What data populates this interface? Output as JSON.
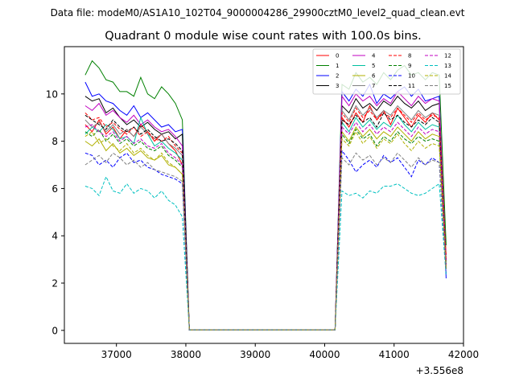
{
  "chart_data": {
    "type": "line",
    "suptitle": "Data file: modeM0/AS1A10_102T04_9000004286_29900cztM0_level2_quad_clean.evt",
    "title": "Quadrant 0 module wise count rates with 100.0s bins.",
    "xlabel": "",
    "ylabel": "",
    "offset_label": "+3.556e8",
    "xlim": [
      36250,
      42000
    ],
    "ylim": [
      -0.55,
      12.0
    ],
    "xticks": [
      37000,
      38000,
      39000,
      40000,
      41000,
      42000
    ],
    "yticks": [
      0,
      2,
      4,
      6,
      8,
      10
    ],
    "legend_position": "upper right",
    "x": [
      36550,
      36650,
      36750,
      36850,
      36950,
      37050,
      37150,
      37250,
      37350,
      37450,
      37550,
      37650,
      37750,
      37850,
      37950,
      38050,
      38150,
      38250,
      38350,
      38450,
      38550,
      38650,
      38750,
      38850,
      38950,
      39050,
      39150,
      39250,
      39350,
      39450,
      39550,
      39650,
      39750,
      39850,
      39950,
      40050,
      40150,
      40250,
      40350,
      40450,
      40550,
      40650,
      40750,
      40850,
      40950,
      41050,
      41150,
      41250,
      41350,
      41450,
      41550,
      41650,
      41750
    ],
    "series": [
      {
        "name": "0",
        "color": "#ff0000",
        "dash": "solid",
        "values": [
          8.7,
          8.4,
          8.9,
          8.3,
          8.6,
          8.1,
          8.5,
          8.2,
          8.7,
          8.4,
          8.0,
          8.3,
          7.9,
          7.6,
          7.0,
          0.02,
          0.02,
          0.02,
          0.02,
          0.02,
          0.02,
          0.02,
          0.02,
          0.02,
          0.02,
          0.02,
          0.02,
          0.02,
          0.02,
          0.02,
          0.02,
          0.02,
          0.02,
          0.02,
          0.02,
          0.02,
          0.02,
          9.0,
          8.6,
          9.2,
          8.8,
          9.5,
          8.9,
          9.3,
          8.7,
          9.4,
          9.0,
          8.6,
          9.1,
          8.8,
          9.2,
          8.9,
          3.2
        ]
      },
      {
        "name": "1",
        "color": "#008000",
        "dash": "solid",
        "values": [
          10.8,
          11.4,
          11.1,
          10.6,
          10.5,
          10.1,
          10.1,
          9.9,
          10.7,
          10.0,
          9.8,
          10.3,
          10.0,
          9.6,
          8.9,
          0.02,
          0.02,
          0.02,
          0.02,
          0.02,
          0.02,
          0.02,
          0.02,
          0.02,
          0.02,
          0.02,
          0.02,
          0.02,
          0.02,
          0.02,
          0.02,
          0.02,
          0.02,
          0.02,
          0.02,
          0.02,
          0.02,
          10.4,
          10.2,
          10.9,
          10.5,
          10.7,
          10.4,
          10.9,
          10.6,
          11.0,
          11.2,
          10.8,
          10.9,
          10.6,
          10.9,
          10.8,
          3.6
        ]
      },
      {
        "name": "2",
        "color": "#0000ff",
        "dash": "solid",
        "values": [
          10.5,
          9.9,
          10.0,
          9.7,
          9.6,
          9.3,
          9.1,
          9.5,
          9.0,
          9.2,
          8.9,
          8.6,
          8.7,
          8.4,
          8.5,
          0.02,
          0.02,
          0.02,
          0.02,
          0.02,
          0.02,
          0.02,
          0.02,
          0.02,
          0.02,
          0.02,
          0.02,
          0.02,
          0.02,
          0.02,
          0.02,
          0.02,
          0.02,
          0.02,
          0.02,
          0.02,
          0.02,
          10.1,
          9.7,
          10.2,
          9.9,
          10.4,
          9.6,
          10.0,
          9.8,
          10.1,
          10.3,
          9.9,
          10.2,
          9.7,
          9.8,
          9.9,
          2.2
        ]
      },
      {
        "name": "3",
        "color": "#000000",
        "dash": "solid",
        "values": [
          9.9,
          9.7,
          9.8,
          9.2,
          9.4,
          9.0,
          8.7,
          8.9,
          8.6,
          8.8,
          8.5,
          8.3,
          8.4,
          8.1,
          8.3,
          0.02,
          0.02,
          0.02,
          0.02,
          0.02,
          0.02,
          0.02,
          0.02,
          0.02,
          0.02,
          0.02,
          0.02,
          0.02,
          0.02,
          0.02,
          0.02,
          0.02,
          0.02,
          0.02,
          0.02,
          0.02,
          0.02,
          9.5,
          9.2,
          9.8,
          9.4,
          9.6,
          9.3,
          9.7,
          9.5,
          9.9,
          9.6,
          9.4,
          9.7,
          9.3,
          9.5,
          9.6,
          2.6
        ]
      },
      {
        "name": "4",
        "color": "#c000c0",
        "dash": "solid",
        "values": [
          9.5,
          9.3,
          9.6,
          9.1,
          9.3,
          9.0,
          8.8,
          9.1,
          8.7,
          8.9,
          8.6,
          8.4,
          8.5,
          8.2,
          7.8,
          0.02,
          0.02,
          0.02,
          0.02,
          0.02,
          0.02,
          0.02,
          0.02,
          0.02,
          0.02,
          0.02,
          0.02,
          0.02,
          0.02,
          0.02,
          0.02,
          0.02,
          0.02,
          0.02,
          0.02,
          0.02,
          0.02,
          9.9,
          9.5,
          10.0,
          9.7,
          9.9,
          9.5,
          9.8,
          9.6,
          10.1,
          9.8,
          9.5,
          9.9,
          9.6,
          9.8,
          9.7,
          2.9
        ]
      },
      {
        "name": "5",
        "color": "#00c0a0",
        "dash": "solid",
        "values": [
          8.3,
          8.6,
          8.4,
          8.7,
          8.5,
          8.1,
          8.2,
          7.9,
          9.0,
          8.3,
          7.8,
          8.0,
          7.7,
          7.5,
          7.2,
          0.02,
          0.02,
          0.02,
          0.02,
          0.02,
          0.02,
          0.02,
          0.02,
          0.02,
          0.02,
          0.02,
          0.02,
          0.02,
          0.02,
          0.02,
          0.02,
          0.02,
          0.02,
          0.02,
          0.02,
          0.02,
          0.02,
          8.8,
          8.4,
          9.0,
          8.6,
          8.9,
          8.5,
          8.8,
          8.6,
          9.1,
          8.7,
          8.4,
          8.8,
          8.5,
          8.7,
          8.6,
          2.8
        ]
      },
      {
        "name": "6",
        "color": "#b0b000",
        "dash": "solid",
        "values": [
          8.0,
          7.8,
          8.1,
          7.6,
          7.9,
          7.5,
          7.7,
          7.4,
          7.6,
          7.3,
          7.2,
          7.4,
          7.0,
          6.9,
          6.6,
          0.02,
          0.02,
          0.02,
          0.02,
          0.02,
          0.02,
          0.02,
          0.02,
          0.02,
          0.02,
          0.02,
          0.02,
          0.02,
          0.02,
          0.02,
          0.02,
          0.02,
          0.02,
          0.02,
          0.02,
          0.02,
          0.02,
          8.4,
          8.0,
          8.6,
          8.2,
          8.5,
          8.1,
          8.4,
          8.2,
          8.6,
          8.3,
          8.0,
          8.4,
          8.1,
          8.3,
          8.2,
          2.7
        ]
      },
      {
        "name": "7",
        "color": "#808080",
        "dash": "solid",
        "values": [
          8.9,
          8.6,
          8.8,
          8.4,
          8.7,
          8.3,
          8.5,
          8.2,
          8.6,
          8.3,
          8.1,
          8.3,
          7.9,
          7.7,
          7.4,
          0.02,
          0.02,
          0.02,
          0.02,
          0.02,
          0.02,
          0.02,
          0.02,
          0.02,
          0.02,
          0.02,
          0.02,
          0.02,
          0.02,
          0.02,
          0.02,
          0.02,
          0.02,
          0.02,
          0.02,
          0.02,
          0.02,
          9.3,
          8.9,
          9.5,
          9.1,
          9.4,
          9.0,
          9.3,
          9.1,
          9.5,
          9.2,
          8.9,
          9.3,
          9.0,
          9.2,
          9.1,
          2.9
        ]
      },
      {
        "name": "8",
        "color": "#ff0000",
        "dash": "dashed",
        "values": [
          9.2,
          8.9,
          9.0,
          8.6,
          8.8,
          8.5,
          8.3,
          8.6,
          8.2,
          8.4,
          8.1,
          8.0,
          8.2,
          7.8,
          7.5,
          0.02,
          0.02,
          0.02,
          0.02,
          0.02,
          0.02,
          0.02,
          0.02,
          0.02,
          0.02,
          0.02,
          0.02,
          0.02,
          0.02,
          0.02,
          0.02,
          0.02,
          0.02,
          0.02,
          0.02,
          0.02,
          0.02,
          9.2,
          8.8,
          9.4,
          9.0,
          9.3,
          8.9,
          9.2,
          9.0,
          9.4,
          9.1,
          8.8,
          9.2,
          8.9,
          9.1,
          9.0,
          3.0
        ]
      },
      {
        "name": "9",
        "color": "#008000",
        "dash": "dashed",
        "values": [
          8.4,
          8.2,
          8.5,
          8.0,
          8.3,
          7.9,
          8.1,
          7.8,
          8.0,
          7.7,
          7.6,
          7.8,
          7.4,
          7.2,
          6.9,
          0.02,
          0.02,
          0.02,
          0.02,
          0.02,
          0.02,
          0.02,
          0.02,
          0.02,
          0.02,
          0.02,
          0.02,
          0.02,
          0.02,
          0.02,
          0.02,
          0.02,
          0.02,
          0.02,
          0.02,
          0.02,
          0.02,
          8.3,
          7.9,
          8.5,
          8.1,
          8.3,
          7.8,
          8.2,
          8.0,
          8.4,
          8.1,
          7.9,
          8.2,
          8.0,
          8.1,
          8.0,
          2.6
        ]
      },
      {
        "name": "10",
        "color": "#0000ff",
        "dash": "dashed",
        "values": [
          7.5,
          7.4,
          7.0,
          7.2,
          6.9,
          7.3,
          7.5,
          7.1,
          7.2,
          6.9,
          6.8,
          6.6,
          6.5,
          6.4,
          6.2,
          0.02,
          0.02,
          0.02,
          0.02,
          0.02,
          0.02,
          0.02,
          0.02,
          0.02,
          0.02,
          0.02,
          0.02,
          0.02,
          0.02,
          0.02,
          0.02,
          0.02,
          0.02,
          0.02,
          0.02,
          0.02,
          0.02,
          7.6,
          7.2,
          6.7,
          7.0,
          7.2,
          6.9,
          7.4,
          7.1,
          7.3,
          6.9,
          6.5,
          7.2,
          7.0,
          7.3,
          7.1,
          2.4
        ]
      },
      {
        "name": "11",
        "color": "#000000",
        "dash": "dashed",
        "values": [
          9.1,
          8.9,
          8.7,
          8.5,
          8.9,
          8.6,
          8.4,
          8.6,
          8.3,
          8.5,
          8.2,
          8.0,
          8.1,
          7.9,
          7.6,
          0.02,
          0.02,
          0.02,
          0.02,
          0.02,
          0.02,
          0.02,
          0.02,
          0.02,
          0.02,
          0.02,
          0.02,
          0.02,
          0.02,
          0.02,
          0.02,
          0.02,
          0.02,
          0.02,
          0.02,
          0.02,
          0.02,
          8.9,
          8.7,
          9.1,
          8.8,
          9.0,
          8.6,
          9.2,
          8.9,
          9.1,
          8.8,
          8.6,
          8.9,
          8.7,
          9.0,
          8.8,
          2.8
        ]
      },
      {
        "name": "12",
        "color": "#c000c0",
        "dash": "dashed",
        "values": [
          8.6,
          8.7,
          8.4,
          8.2,
          8.4,
          8.0,
          8.2,
          7.9,
          8.1,
          7.8,
          7.7,
          7.9,
          7.5,
          7.3,
          7.0,
          0.02,
          0.02,
          0.02,
          0.02,
          0.02,
          0.02,
          0.02,
          0.02,
          0.02,
          0.02,
          0.02,
          0.02,
          0.02,
          0.02,
          0.02,
          0.02,
          0.02,
          0.02,
          0.02,
          0.02,
          0.02,
          0.02,
          8.6,
          8.3,
          8.8,
          8.4,
          8.7,
          8.3,
          8.6,
          8.4,
          8.8,
          8.5,
          8.2,
          8.6,
          8.3,
          8.5,
          8.4,
          2.7
        ]
      },
      {
        "name": "13",
        "color": "#00c0c0",
        "dash": "dashed",
        "values": [
          6.1,
          6.0,
          5.7,
          6.5,
          5.9,
          5.8,
          6.2,
          5.8,
          6.0,
          5.9,
          5.6,
          5.9,
          5.5,
          5.3,
          4.8,
          0.02,
          0.02,
          0.02,
          0.02,
          0.02,
          0.02,
          0.02,
          0.02,
          0.02,
          0.02,
          0.02,
          0.02,
          0.02,
          0.02,
          0.02,
          0.02,
          0.02,
          0.02,
          0.02,
          0.02,
          0.02,
          0.02,
          5.9,
          5.7,
          5.8,
          5.6,
          5.9,
          5.8,
          6.1,
          6.1,
          6.2,
          6.0,
          5.8,
          5.7,
          5.8,
          6.0,
          6.2,
          2.3
        ]
      },
      {
        "name": "14",
        "color": "#b0b000",
        "dash": "dashed",
        "values": [
          8.2,
          8.4,
          7.9,
          8.1,
          7.8,
          7.6,
          7.9,
          7.5,
          7.7,
          7.4,
          7.2,
          7.5,
          7.1,
          6.9,
          6.6,
          0.02,
          0.02,
          0.02,
          0.02,
          0.02,
          0.02,
          0.02,
          0.02,
          0.02,
          0.02,
          0.02,
          0.02,
          0.02,
          0.02,
          0.02,
          0.02,
          0.02,
          0.02,
          0.02,
          0.02,
          0.02,
          0.02,
          8.1,
          7.8,
          8.4,
          7.9,
          8.2,
          7.7,
          8.1,
          7.9,
          8.3,
          7.9,
          7.6,
          8.0,
          7.7,
          7.9,
          7.8,
          2.6
        ]
      },
      {
        "name": "15",
        "color": "#808080",
        "dash": "dashed",
        "values": [
          7.0,
          7.2,
          7.4,
          7.1,
          7.5,
          7.3,
          7.0,
          7.2,
          6.9,
          7.1,
          6.8,
          6.7,
          6.6,
          6.5,
          6.3,
          0.02,
          0.02,
          0.02,
          0.02,
          0.02,
          0.02,
          0.02,
          0.02,
          0.02,
          0.02,
          0.02,
          0.02,
          0.02,
          0.02,
          0.02,
          0.02,
          0.02,
          0.02,
          0.02,
          0.02,
          0.02,
          0.02,
          7.3,
          7.0,
          7.5,
          7.2,
          7.4,
          7.0,
          7.3,
          7.1,
          7.5,
          7.2,
          6.9,
          7.3,
          7.0,
          7.2,
          7.1,
          2.5
        ]
      }
    ]
  }
}
